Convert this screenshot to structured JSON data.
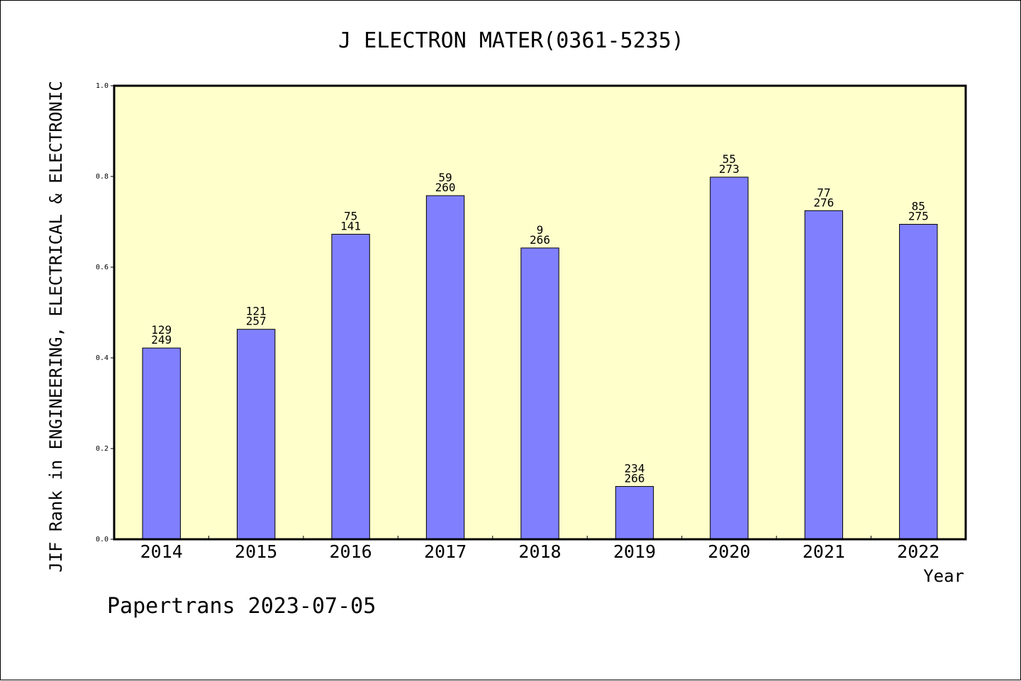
{
  "chart_data": {
    "type": "bar",
    "title": "J ELECTRON MATER(0361-5235)",
    "xlabel": "Year",
    "ylabel": "JIF Rank in ENGINEERING, ELECTRICAL & ELECTRONIC",
    "ylim": [
      0,
      1.0
    ],
    "yticks": [
      "0.0",
      "0.2",
      "0.4",
      "0.6",
      "0.8",
      "1.0"
    ],
    "categories": [
      "2014",
      "2015",
      "2016",
      "2017",
      "2018",
      "2019",
      "2020",
      "2021",
      "2022"
    ],
    "values": [
      0.4217,
      0.463,
      0.6726,
      0.7577,
      0.6423,
      0.1165,
      0.7985,
      0.7246,
      0.6945
    ],
    "rank": [
      "129",
      "121",
      "75",
      "59",
      "9",
      "234",
      "55",
      "77",
      "85"
    ],
    "total": [
      "249",
      "257",
      "141",
      "260",
      "266",
      "266",
      "273",
      "276",
      "275"
    ],
    "bar_color": "#8080ff",
    "plot_background": "#ffffcc"
  },
  "footer": "Papertrans 2023-07-05"
}
